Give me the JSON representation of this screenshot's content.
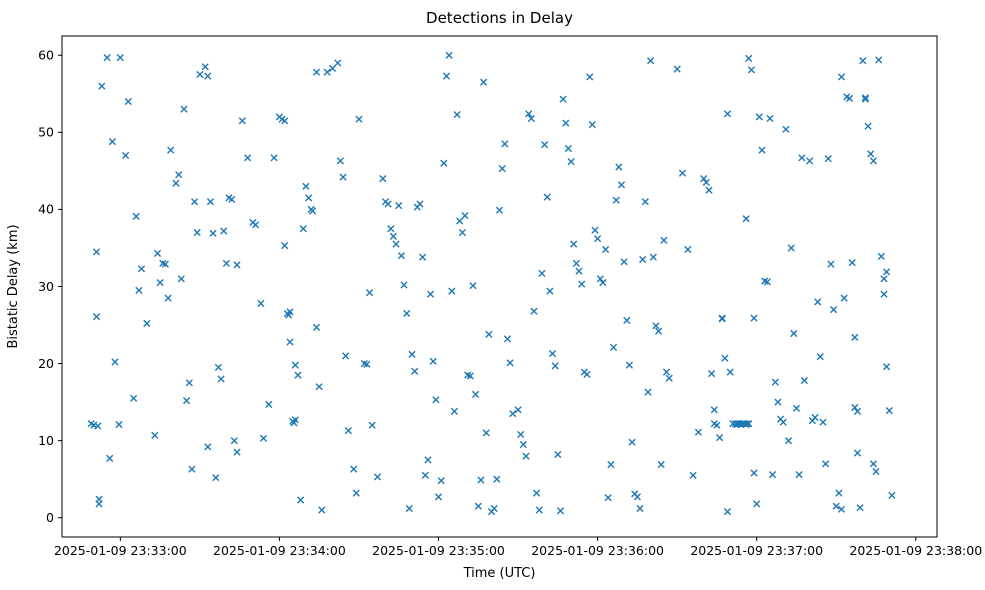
{
  "figure": {
    "title": "Detections in Delay",
    "xlabel": "Time (UTC)",
    "ylabel": "Bistatic Delay (km)"
  },
  "chart_data": {
    "type": "scatter",
    "title": "Detections in Delay",
    "xlabel": "Time (UTC)",
    "ylabel": "Bistatic Delay (km)",
    "marker": "x",
    "marker_color": "#1f77b4",
    "x_unit": "seconds relative to 2025-01-09 23:33:00 UTC",
    "xlim": [
      -22,
      308
    ],
    "ylim": [
      -2.5,
      62.5
    ],
    "grid": false,
    "legend": "none",
    "x_ticks": [
      {
        "t": 0,
        "label": "2025-01-09 23:33:00"
      },
      {
        "t": 60,
        "label": "2025-01-09 23:34:00"
      },
      {
        "t": 120,
        "label": "2025-01-09 23:35:00"
      },
      {
        "t": 180,
        "label": "2025-01-09 23:36:00"
      },
      {
        "t": 240,
        "label": "2025-01-09 23:37:00"
      },
      {
        "t": 300,
        "label": "2025-01-09 23:38:00"
      }
    ],
    "y_ticks": [
      0,
      10,
      20,
      30,
      40,
      50,
      60
    ],
    "points": [
      [
        -11,
        12.2
      ],
      [
        -10,
        12.0
      ],
      [
        -8.5,
        11.9
      ],
      [
        -9,
        26.1
      ],
      [
        -9,
        34.5
      ],
      [
        -8,
        2.4
      ],
      [
        -8,
        1.8
      ],
      [
        -7,
        56.0
      ],
      [
        -5,
        59.7
      ],
      [
        -4,
        7.7
      ],
      [
        -3,
        48.8
      ],
      [
        -2,
        20.2
      ],
      [
        0,
        59.7
      ],
      [
        -0.5,
        12.1
      ],
      [
        2,
        47.0
      ],
      [
        3,
        54.0
      ],
      [
        5,
        15.5
      ],
      [
        6,
        39.1
      ],
      [
        7,
        29.5
      ],
      [
        8,
        32.3
      ],
      [
        10,
        25.2
      ],
      [
        13,
        10.7
      ],
      [
        14,
        34.3
      ],
      [
        15,
        30.5
      ],
      [
        16,
        33.0
      ],
      [
        17,
        32.9
      ],
      [
        18,
        28.5
      ],
      [
        19,
        47.7
      ],
      [
        21,
        43.4
      ],
      [
        22,
        44.5
      ],
      [
        23,
        31.0
      ],
      [
        24,
        53.0
      ],
      [
        25,
        15.2
      ],
      [
        26,
        17.5
      ],
      [
        27,
        6.3
      ],
      [
        28,
        41.0
      ],
      [
        29,
        37.0
      ],
      [
        30,
        57.5
      ],
      [
        32,
        58.5
      ],
      [
        33,
        57.3
      ],
      [
        33,
        9.2
      ],
      [
        34,
        41.0
      ],
      [
        35,
        36.9
      ],
      [
        36,
        5.2
      ],
      [
        37,
        19.5
      ],
      [
        38,
        18.0
      ],
      [
        39,
        37.2
      ],
      [
        40,
        33.0
      ],
      [
        41,
        41.5
      ],
      [
        42,
        41.3
      ],
      [
        43,
        10.0
      ],
      [
        44,
        8.5
      ],
      [
        44,
        32.8
      ],
      [
        46,
        51.5
      ],
      [
        48,
        46.7
      ],
      [
        50,
        38.3
      ],
      [
        51,
        38.0
      ],
      [
        53,
        27.8
      ],
      [
        54,
        10.3
      ],
      [
        56,
        14.7
      ],
      [
        58,
        46.7
      ],
      [
        60,
        52.0
      ],
      [
        61,
        51.7
      ],
      [
        62,
        51.5
      ],
      [
        62,
        35.3
      ],
      [
        63,
        26.5
      ],
      [
        63.5,
        26.3
      ],
      [
        64,
        26.7
      ],
      [
        64,
        22.8
      ],
      [
        65,
        12.5
      ],
      [
        65.5,
        12.3
      ],
      [
        66,
        12.7
      ],
      [
        66,
        19.8
      ],
      [
        67,
        18.5
      ],
      [
        68,
        2.3
      ],
      [
        69,
        37.5
      ],
      [
        70,
        43.0
      ],
      [
        71,
        41.5
      ],
      [
        72,
        40.0
      ],
      [
        72.5,
        39.8
      ],
      [
        74,
        24.7
      ],
      [
        74,
        57.8
      ],
      [
        75,
        17.0
      ],
      [
        76,
        1.0
      ],
      [
        78,
        57.8
      ],
      [
        80,
        58.3
      ],
      [
        82,
        59.0
      ],
      [
        83,
        46.3
      ],
      [
        84,
        44.2
      ],
      [
        85,
        21.0
      ],
      [
        86,
        11.3
      ],
      [
        88,
        6.3
      ],
      [
        89,
        3.2
      ],
      [
        90,
        51.7
      ],
      [
        92,
        20.0
      ],
      [
        93,
        19.9
      ],
      [
        94,
        29.2
      ],
      [
        95,
        12.0
      ],
      [
        97,
        5.3
      ],
      [
        99,
        44.0
      ],
      [
        100,
        41.0
      ],
      [
        101,
        40.7
      ],
      [
        102,
        37.5
      ],
      [
        103,
        36.5
      ],
      [
        104,
        35.5
      ],
      [
        105,
        40.5
      ],
      [
        106,
        34.0
      ],
      [
        107,
        30.2
      ],
      [
        108,
        26.5
      ],
      [
        109,
        1.2
      ],
      [
        110,
        21.2
      ],
      [
        111,
        19.0
      ],
      [
        112,
        40.3
      ],
      [
        113,
        40.7
      ],
      [
        114,
        33.8
      ],
      [
        115,
        5.5
      ],
      [
        116,
        7.5
      ],
      [
        117,
        29.0
      ],
      [
        118,
        20.3
      ],
      [
        119,
        15.3
      ],
      [
        120,
        2.7
      ],
      [
        121,
        4.8
      ],
      [
        122,
        46.0
      ],
      [
        123,
        57.3
      ],
      [
        124,
        60.0
      ],
      [
        125,
        29.4
      ],
      [
        126,
        13.8
      ],
      [
        127,
        52.3
      ],
      [
        128,
        38.5
      ],
      [
        129,
        37.0
      ],
      [
        130,
        39.2
      ],
      [
        131,
        18.5
      ],
      [
        132,
        18.4
      ],
      [
        133,
        30.1
      ],
      [
        134,
        16.0
      ],
      [
        135,
        1.5
      ],
      [
        136,
        4.9
      ],
      [
        137,
        56.5
      ],
      [
        138,
        11.0
      ],
      [
        139,
        23.8
      ],
      [
        140,
        0.8
      ],
      [
        141,
        1.2
      ],
      [
        142,
        5.0
      ],
      [
        143,
        39.9
      ],
      [
        144,
        45.3
      ],
      [
        145,
        48.5
      ],
      [
        146,
        23.2
      ],
      [
        147,
        20.1
      ],
      [
        148,
        13.5
      ],
      [
        150,
        14.0
      ],
      [
        151,
        10.8
      ],
      [
        152,
        9.5
      ],
      [
        153,
        8.0
      ],
      [
        154,
        52.4
      ],
      [
        155,
        51.8
      ],
      [
        156,
        26.8
      ],
      [
        157,
        3.2
      ],
      [
        158,
        1.0
      ],
      [
        159,
        31.7
      ],
      [
        160,
        48.4
      ],
      [
        161,
        41.6
      ],
      [
        162,
        29.4
      ],
      [
        163,
        21.3
      ],
      [
        164,
        19.7
      ],
      [
        165,
        8.2
      ],
      [
        166,
        0.9
      ],
      [
        167,
        54.3
      ],
      [
        168,
        51.2
      ],
      [
        169,
        47.9
      ],
      [
        170,
        46.2
      ],
      [
        171,
        35.5
      ],
      [
        172,
        33.0
      ],
      [
        173,
        32.0
      ],
      [
        174,
        30.3
      ],
      [
        175,
        18.9
      ],
      [
        176,
        18.6
      ],
      [
        177,
        57.2
      ],
      [
        178,
        51.0
      ],
      [
        179,
        37.3
      ],
      [
        180,
        36.2
      ],
      [
        181,
        31.0
      ],
      [
        182,
        30.5
      ],
      [
        183,
        34.8
      ],
      [
        184,
        2.6
      ],
      [
        185,
        6.9
      ],
      [
        186,
        22.1
      ],
      [
        187,
        41.2
      ],
      [
        188,
        45.5
      ],
      [
        189,
        43.2
      ],
      [
        190,
        33.2
      ],
      [
        191,
        25.6
      ],
      [
        192,
        19.8
      ],
      [
        193,
        9.8
      ],
      [
        194,
        3.1
      ],
      [
        195,
        2.7
      ],
      [
        196,
        1.2
      ],
      [
        197,
        33.5
      ],
      [
        198,
        41.0
      ],
      [
        199,
        16.3
      ],
      [
        200,
        59.3
      ],
      [
        201,
        33.8
      ],
      [
        202,
        24.9
      ],
      [
        203,
        24.2
      ],
      [
        204,
        6.9
      ],
      [
        205,
        36.0
      ],
      [
        206,
        18.9
      ],
      [
        207,
        18.1
      ],
      [
        210,
        58.2
      ],
      [
        212,
        44.7
      ],
      [
        214,
        34.8
      ],
      [
        216,
        5.5
      ],
      [
        218,
        11.1
      ],
      [
        220,
        44.0
      ],
      [
        221,
        43.5
      ],
      [
        222,
        42.5
      ],
      [
        223,
        18.7
      ],
      [
        224,
        14.0
      ],
      [
        224,
        12.2
      ],
      [
        225,
        12.0
      ],
      [
        226,
        10.4
      ],
      [
        227,
        25.9
      ],
      [
        227,
        25.8
      ],
      [
        228,
        20.7
      ],
      [
        229,
        52.4
      ],
      [
        229,
        0.8
      ],
      [
        230,
        18.9
      ],
      [
        231,
        12.2
      ],
      [
        232,
        12.2
      ],
      [
        232.5,
        12.1
      ],
      [
        233,
        12.2
      ],
      [
        233.5,
        12.2
      ],
      [
        234,
        12.1
      ],
      [
        234.5,
        12.2
      ],
      [
        235,
        12.2
      ],
      [
        235.5,
        12.2
      ],
      [
        236,
        12.1
      ],
      [
        236.5,
        12.2
      ],
      [
        237,
        12.2
      ],
      [
        236,
        38.8
      ],
      [
        237,
        59.6
      ],
      [
        238,
        58.1
      ],
      [
        239,
        25.9
      ],
      [
        239,
        5.8
      ],
      [
        240,
        1.8
      ],
      [
        241,
        52.0
      ],
      [
        242,
        47.7
      ],
      [
        243,
        30.7
      ],
      [
        244,
        30.6
      ],
      [
        245,
        51.8
      ],
      [
        246,
        5.6
      ],
      [
        247,
        17.6
      ],
      [
        248,
        15.0
      ],
      [
        249,
        12.8
      ],
      [
        250,
        12.4
      ],
      [
        251,
        50.4
      ],
      [
        252,
        10.0
      ],
      [
        253,
        35.0
      ],
      [
        254,
        23.9
      ],
      [
        255,
        14.2
      ],
      [
        256,
        5.6
      ],
      [
        257,
        46.7
      ],
      [
        258,
        17.8
      ],
      [
        260,
        46.3
      ],
      [
        261,
        12.6
      ],
      [
        262,
        13.0
      ],
      [
        263,
        28.0
      ],
      [
        264,
        20.9
      ],
      [
        265,
        12.4
      ],
      [
        266,
        7.0
      ],
      [
        267,
        46.6
      ],
      [
        268,
        32.9
      ],
      [
        269,
        27.0
      ],
      [
        270,
        1.5
      ],
      [
        271,
        3.2
      ],
      [
        272,
        57.2
      ],
      [
        272,
        1.1
      ],
      [
        273,
        28.5
      ],
      [
        274,
        54.6
      ],
      [
        275,
        54.4
      ],
      [
        276,
        33.1
      ],
      [
        277,
        23.4
      ],
      [
        277,
        14.3
      ],
      [
        278,
        13.8
      ],
      [
        278,
        8.4
      ],
      [
        279,
        1.3
      ],
      [
        280,
        59.3
      ],
      [
        281,
        54.5
      ],
      [
        281,
        54.3
      ],
      [
        282,
        50.8
      ],
      [
        283,
        47.2
      ],
      [
        284,
        46.3
      ],
      [
        284,
        7.0
      ],
      [
        285,
        6.0
      ],
      [
        286,
        59.4
      ],
      [
        287,
        33.9
      ],
      [
        288,
        31.0
      ],
      [
        288,
        29.0
      ],
      [
        289,
        31.9
      ],
      [
        289,
        19.6
      ],
      [
        290,
        13.9
      ],
      [
        291,
        2.9
      ]
    ]
  }
}
